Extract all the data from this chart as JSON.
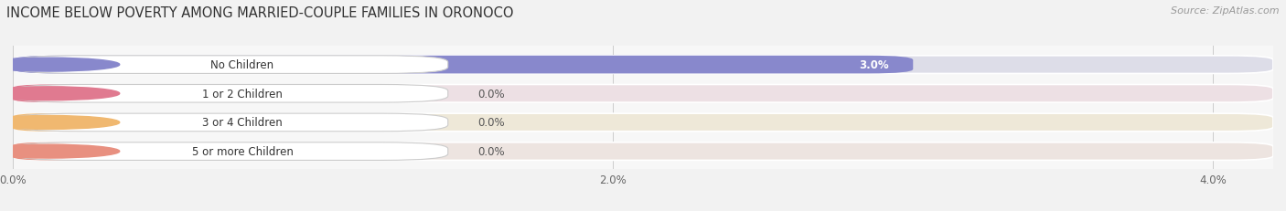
{
  "title": "INCOME BELOW POVERTY AMONG MARRIED-COUPLE FAMILIES IN ORONOCO",
  "source": "Source: ZipAtlas.com",
  "categories": [
    "No Children",
    "1 or 2 Children",
    "3 or 4 Children",
    "5 or more Children"
  ],
  "values": [
    3.0,
    0.0,
    0.0,
    0.0
  ],
  "bar_colors": [
    "#8888cc",
    "#e07a90",
    "#f0b870",
    "#e89080"
  ],
  "bar_track_colors": [
    "#dddde8",
    "#ede0e4",
    "#eee8d8",
    "#ede4e0"
  ],
  "label_bg_colors": [
    "#e0e0ee",
    "#f0d0d8",
    "#f8e8c8",
    "#f0d8d0"
  ],
  "label_left_colors": [
    "#8888cc",
    "#e07a90",
    "#f0b870",
    "#e89080"
  ],
  "xlim": [
    0,
    4.2
  ],
  "xticks": [
    0.0,
    2.0,
    4.0
  ],
  "xtick_labels": [
    "0.0%",
    "2.0%",
    "4.0%"
  ],
  "bar_height": 0.62,
  "background_color": "#f2f2f2",
  "plot_bg_color": "#f7f7f7",
  "title_fontsize": 10.5,
  "label_fontsize": 8.5,
  "value_fontsize": 8.5,
  "source_fontsize": 8
}
